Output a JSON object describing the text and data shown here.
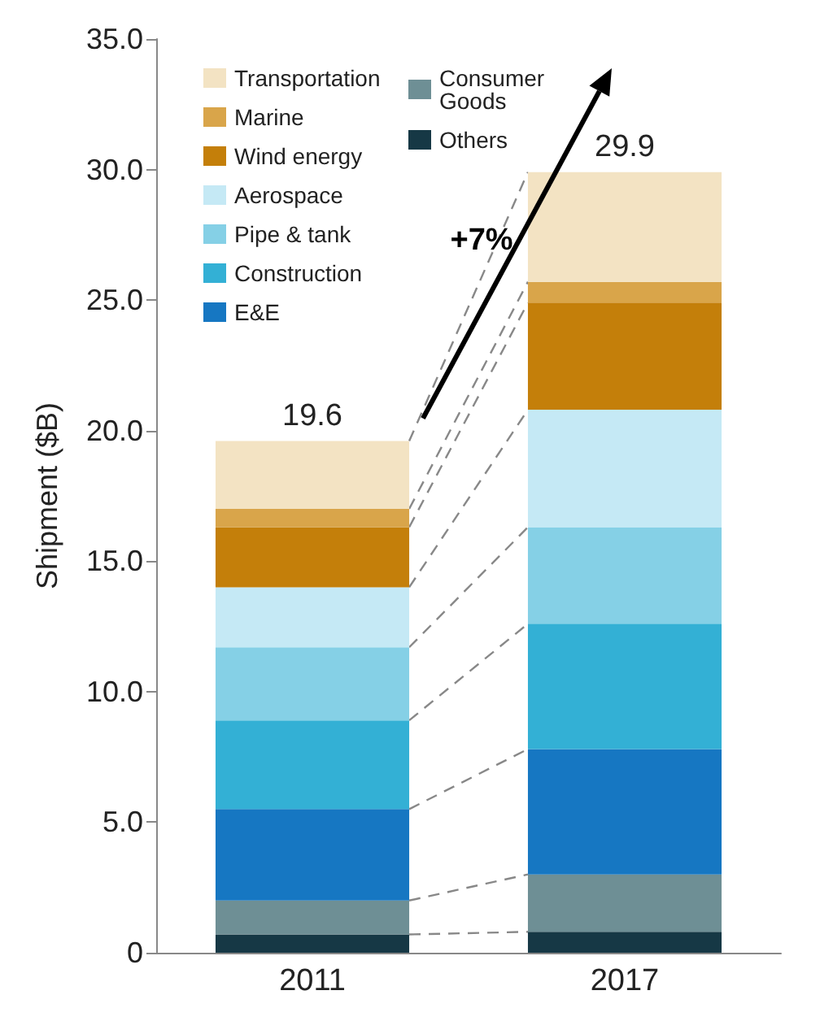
{
  "chart_data": {
    "type": "bar",
    "stacked": true,
    "ylabel": "Shipment ($B)",
    "categories": [
      "2011",
      "2017"
    ],
    "series": [
      {
        "name": "Others",
        "color": "#163845",
        "values": [
          0.7,
          0.8
        ]
      },
      {
        "name": "Consumer Goods",
        "color": "#6e8f95",
        "values": [
          1.3,
          2.2
        ]
      },
      {
        "name": "E&E",
        "color": "#1677c2",
        "values": [
          3.5,
          4.8
        ]
      },
      {
        "name": "Construction",
        "color": "#33b0d5",
        "values": [
          3.4,
          4.8
        ]
      },
      {
        "name": "Pipe & tank",
        "color": "#85d0e6",
        "values": [
          2.8,
          3.7
        ]
      },
      {
        "name": "Aerospace",
        "color": "#c5e9f5",
        "values": [
          2.3,
          4.5
        ]
      },
      {
        "name": "Wind energy",
        "color": "#c47f0a",
        "values": [
          2.3,
          4.1
        ]
      },
      {
        "name": "Marine",
        "color": "#d9a54a",
        "values": [
          0.7,
          0.8
        ]
      },
      {
        "name": "Transportation",
        "color": "#f3e3c3",
        "values": [
          2.6,
          4.2
        ]
      }
    ],
    "totals": [
      "19.6",
      "29.9"
    ],
    "annotations": [
      "+7%"
    ],
    "ylim": [
      0,
      35
    ],
    "yticks": [
      0,
      {
        "value": 5,
        "label": "5.0"
      },
      {
        "value": 10,
        "label": "10.0"
      },
      {
        "value": 15,
        "label": "15.0"
      },
      {
        "value": 20,
        "label": "20.0"
      },
      {
        "value": 25,
        "label": "25.0"
      },
      {
        "value": 30,
        "label": "30.0"
      },
      {
        "value": 35,
        "label": "35.0"
      }
    ],
    "grid": false,
    "legend": "top left"
  }
}
